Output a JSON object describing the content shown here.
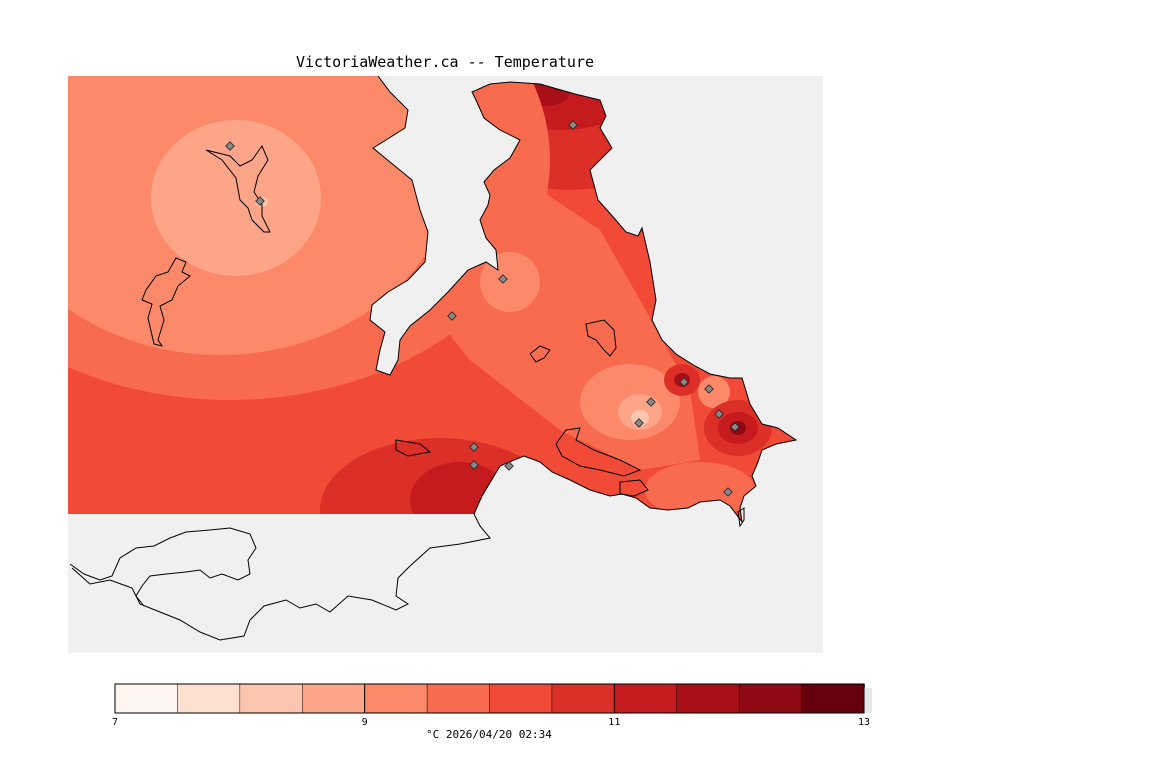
{
  "title": "VictoriaWeather.ca -- Temperature",
  "colorbar": {
    "min": 7,
    "max": 13,
    "colors": [
      "#fff5f0",
      "#fee0d2",
      "#fcc5b0",
      "#fca588",
      "#fc8a6a",
      "#f96b4e",
      "#f14b37",
      "#dc2f28",
      "#c51b1f",
      "#a90f16",
      "#8e0913",
      "#67000d"
    ],
    "tick_labels": [
      "7",
      "9",
      "11",
      "13"
    ]
  },
  "caption": {
    "units": "°C",
    "timestamp": "2026/04/20 02:34"
  },
  "legend_ticks_values": [
    7,
    9,
    11,
    13
  ]
}
